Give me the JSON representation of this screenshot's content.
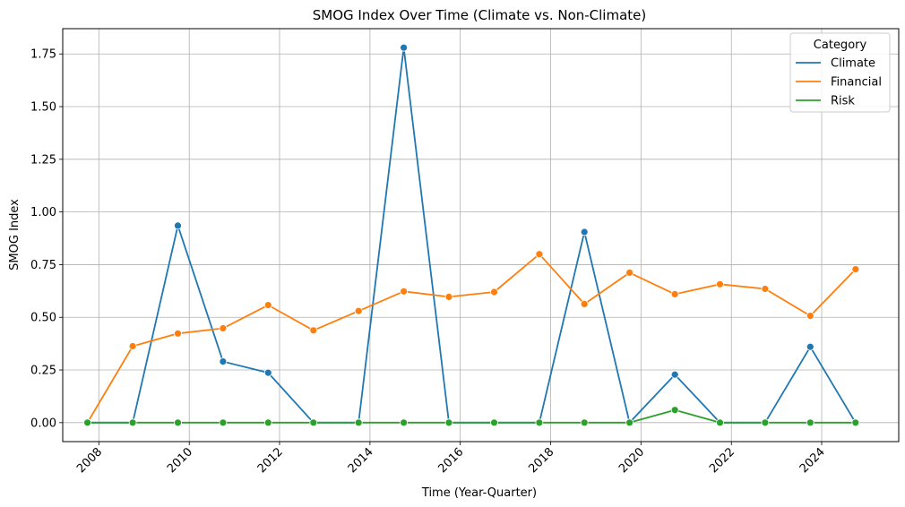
{
  "chart_data": {
    "type": "line",
    "title": "SMOG Index Over Time (Climate vs. Non-Climate)",
    "xlabel": "Time (Year-Quarter)",
    "ylabel": "SMOG Index",
    "x": [
      "2007-10-01",
      "2008-10-01",
      "2009-10-01",
      "2010-10-01",
      "2011-10-01",
      "2012-10-01",
      "2013-10-01",
      "2014-10-01",
      "2015-10-01",
      "2016-10-01",
      "2017-10-01",
      "2018-10-01",
      "2019-10-01",
      "2020-10-01",
      "2021-10-01",
      "2022-10-01",
      "2023-10-01",
      "2024-10-01"
    ],
    "xlim": [
      "2007-03-15",
      "2025-09-15"
    ],
    "xticks": [
      "2008",
      "2010",
      "2012",
      "2014",
      "2016",
      "2018",
      "2020",
      "2022",
      "2024"
    ],
    "ylim": [
      -0.09,
      1.87
    ],
    "yticks": [
      0.0,
      0.25,
      0.5,
      0.75,
      1.0,
      1.25,
      1.5,
      1.75
    ],
    "ytick_labels": [
      "0.00",
      "0.25",
      "0.50",
      "0.75",
      "1.00",
      "1.25",
      "1.50",
      "1.75"
    ],
    "grid": true,
    "legend": {
      "title": "Category",
      "position": "top-right"
    },
    "series": [
      {
        "name": "Climate",
        "color": "#1f77b4",
        "values": [
          0.0,
          0.0,
          0.935,
          0.29,
          0.237,
          0.0,
          0.0,
          1.78,
          0.0,
          0.0,
          0.0,
          0.905,
          0.0,
          0.228,
          0.0,
          0.0,
          0.36,
          0.0
        ]
      },
      {
        "name": "Financial",
        "color": "#ff7f0e",
        "values": [
          0.0,
          0.363,
          0.423,
          0.448,
          0.558,
          0.438,
          0.53,
          0.623,
          0.597,
          0.62,
          0.8,
          0.563,
          0.712,
          0.61,
          0.657,
          0.635,
          0.507,
          0.728
        ]
      },
      {
        "name": "Risk",
        "color": "#2ca02c",
        "values": [
          0.0,
          0.0,
          0.0,
          0.0,
          0.0,
          0.0,
          0.0,
          0.0,
          0.0,
          0.0,
          0.0,
          0.0,
          0.0,
          0.06,
          0.0,
          0.0,
          0.0,
          0.0
        ]
      }
    ]
  }
}
